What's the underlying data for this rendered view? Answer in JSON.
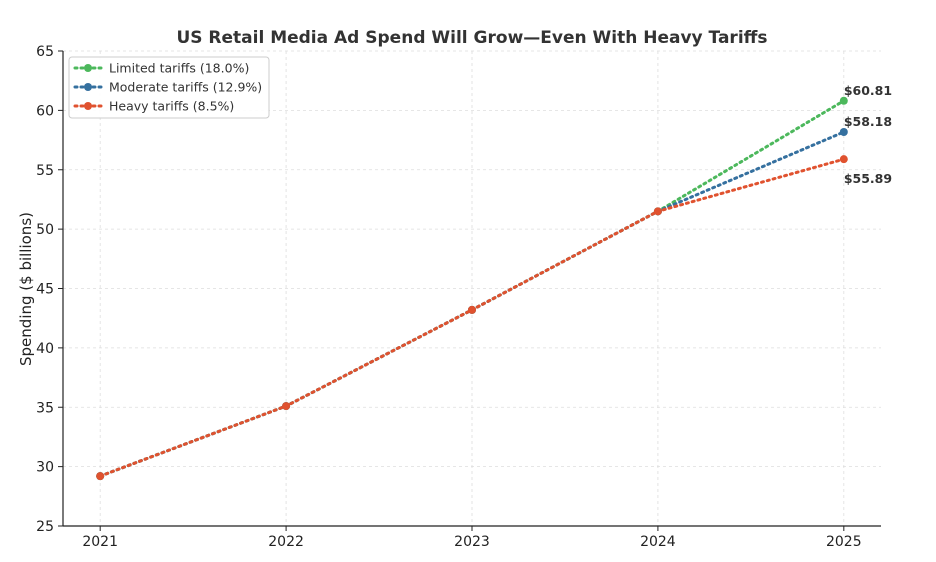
{
  "chart_data": {
    "type": "line",
    "title": "US Retail Media Ad Spend Will Grow—Even With Heavy Tariffs",
    "xlabel": "",
    "ylabel": "Spending ($ billions)",
    "x": [
      2021,
      2022,
      2023,
      2024,
      2025
    ],
    "xticks": [
      "2021",
      "2022",
      "2023",
      "2024",
      "2025"
    ],
    "yticks": [
      "25",
      "30",
      "35",
      "40",
      "45",
      "50",
      "55",
      "60",
      "65"
    ],
    "ylim": [
      25,
      65
    ],
    "xlim": [
      2020.8,
      2025.2
    ],
    "grid": true,
    "legend_position": "top-left",
    "series": [
      {
        "name": "Limited tariffs (18.0%)",
        "color": "#4cb85c",
        "values": [
          29.2,
          35.1,
          43.2,
          51.5,
          60.81
        ],
        "end_label": "$60.81"
      },
      {
        "name": "Moderate tariffs (12.9%)",
        "color": "#35709f",
        "values": [
          29.2,
          35.1,
          43.2,
          51.5,
          58.18
        ],
        "end_label": "$58.18"
      },
      {
        "name": "Heavy tariffs (8.5%)",
        "color": "#e0522f",
        "values": [
          29.2,
          35.1,
          43.2,
          51.5,
          55.89
        ],
        "end_label": "$55.89"
      }
    ]
  }
}
